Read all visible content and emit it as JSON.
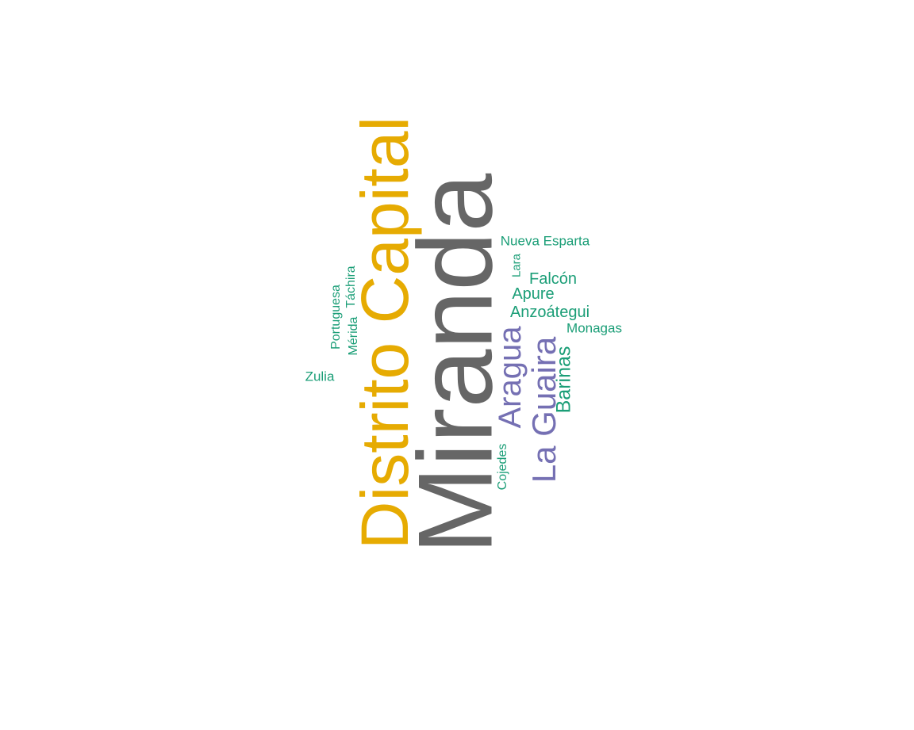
{
  "colors": {
    "gray": "#666666",
    "gold": "#e6ab02",
    "purple": "#7570b3",
    "green": "#1b9e77",
    "background": "#ffffff"
  },
  "words": {
    "miranda": "Miranda",
    "distrito_capital": "Distrito Capital",
    "la_guaira": "La Guaira",
    "aragua": "Aragua",
    "barinas": "Barinas",
    "falcon": "Falcón",
    "apure": "Apure",
    "anzoategui": "Anzoátegui",
    "nueva_esparta": "Nueva Esparta",
    "monagas": "Monagas",
    "zulia": "Zulia",
    "lara": "Lara",
    "portuguesa": "Portuguesa",
    "merida": "Mérida",
    "tachira": "Táchira",
    "cojedes": "Cojedes"
  },
  "word_colors": {
    "miranda": "gray",
    "distrito_capital": "gold",
    "la_guaira": "purple",
    "aragua": "purple",
    "barinas": "green",
    "falcon": "green",
    "apure": "green",
    "anzoategui": "green",
    "nueva_esparta": "green",
    "monagas": "green",
    "zulia": "green",
    "lara": "green",
    "portuguesa": "green",
    "merida": "green",
    "tachira": "green",
    "cojedes": "green"
  }
}
